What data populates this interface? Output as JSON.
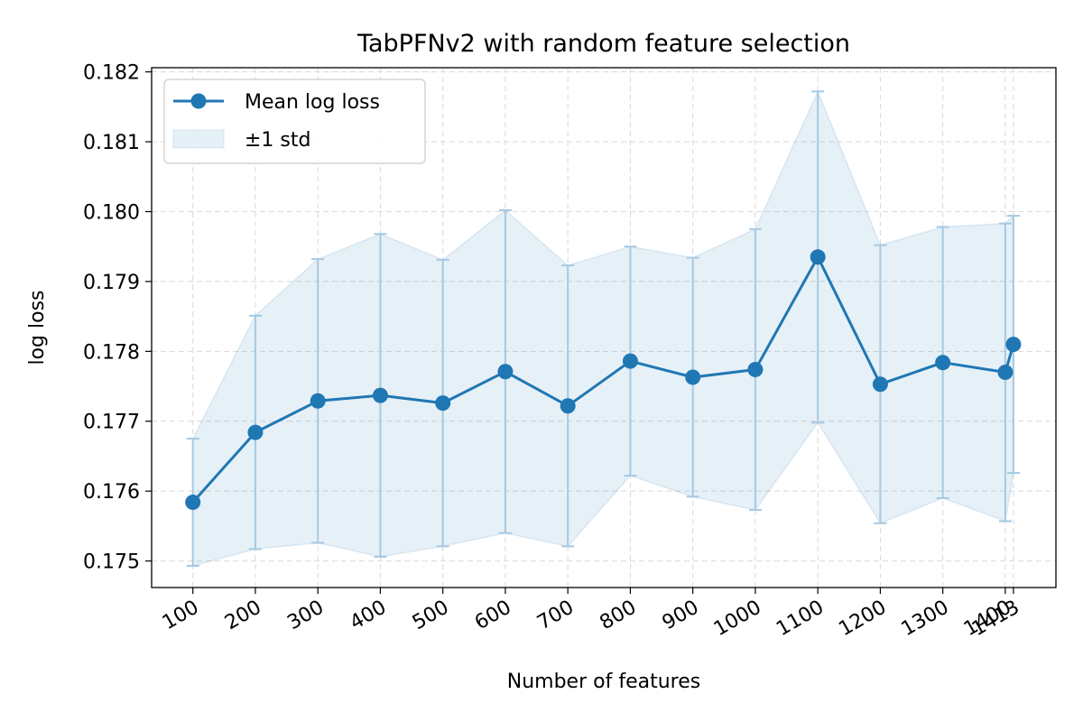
{
  "chart_data": {
    "type": "line",
    "title": "TabPFNv2 with random feature selection",
    "xlabel": "Number of features",
    "ylabel": "log loss",
    "x": [
      100,
      200,
      300,
      400,
      500,
      600,
      700,
      800,
      900,
      1000,
      1100,
      1200,
      1300,
      1400,
      1413
    ],
    "x_tick_labels": [
      "100",
      "200",
      "300",
      "400",
      "500",
      "600",
      "700",
      "800",
      "900",
      "1000",
      "1100",
      "1200",
      "1300",
      "1400",
      "1413"
    ],
    "series": [
      {
        "name": "Mean log loss",
        "values": [
          0.17584,
          0.17684,
          0.17729,
          0.17737,
          0.17726,
          0.17771,
          0.17722,
          0.17786,
          0.17763,
          0.17774,
          0.17935,
          0.17753,
          0.17784,
          0.1777,
          0.1781
        ],
        "std": [
          0.00091,
          0.00167,
          0.00203,
          0.00231,
          0.00205,
          0.00231,
          0.00201,
          0.00164,
          0.00171,
          0.00201,
          0.00237,
          0.00199,
          0.00194,
          0.00213,
          0.00184
        ],
        "color": "#1f77b4"
      }
    ],
    "band_name": "±1 std",
    "band_color": "#1f77b4",
    "xlim": [
      34,
      1481
    ],
    "ylim": [
      0.17462,
      0.18206
    ],
    "y_ticks": [
      0.175,
      0.176,
      0.177,
      0.178,
      0.179,
      0.18,
      0.181,
      0.182
    ],
    "y_tick_labels": [
      "0.175",
      "0.176",
      "0.177",
      "0.178",
      "0.179",
      "0.180",
      "0.181",
      "0.182"
    ],
    "grid": true,
    "legend_position": "top-left"
  }
}
